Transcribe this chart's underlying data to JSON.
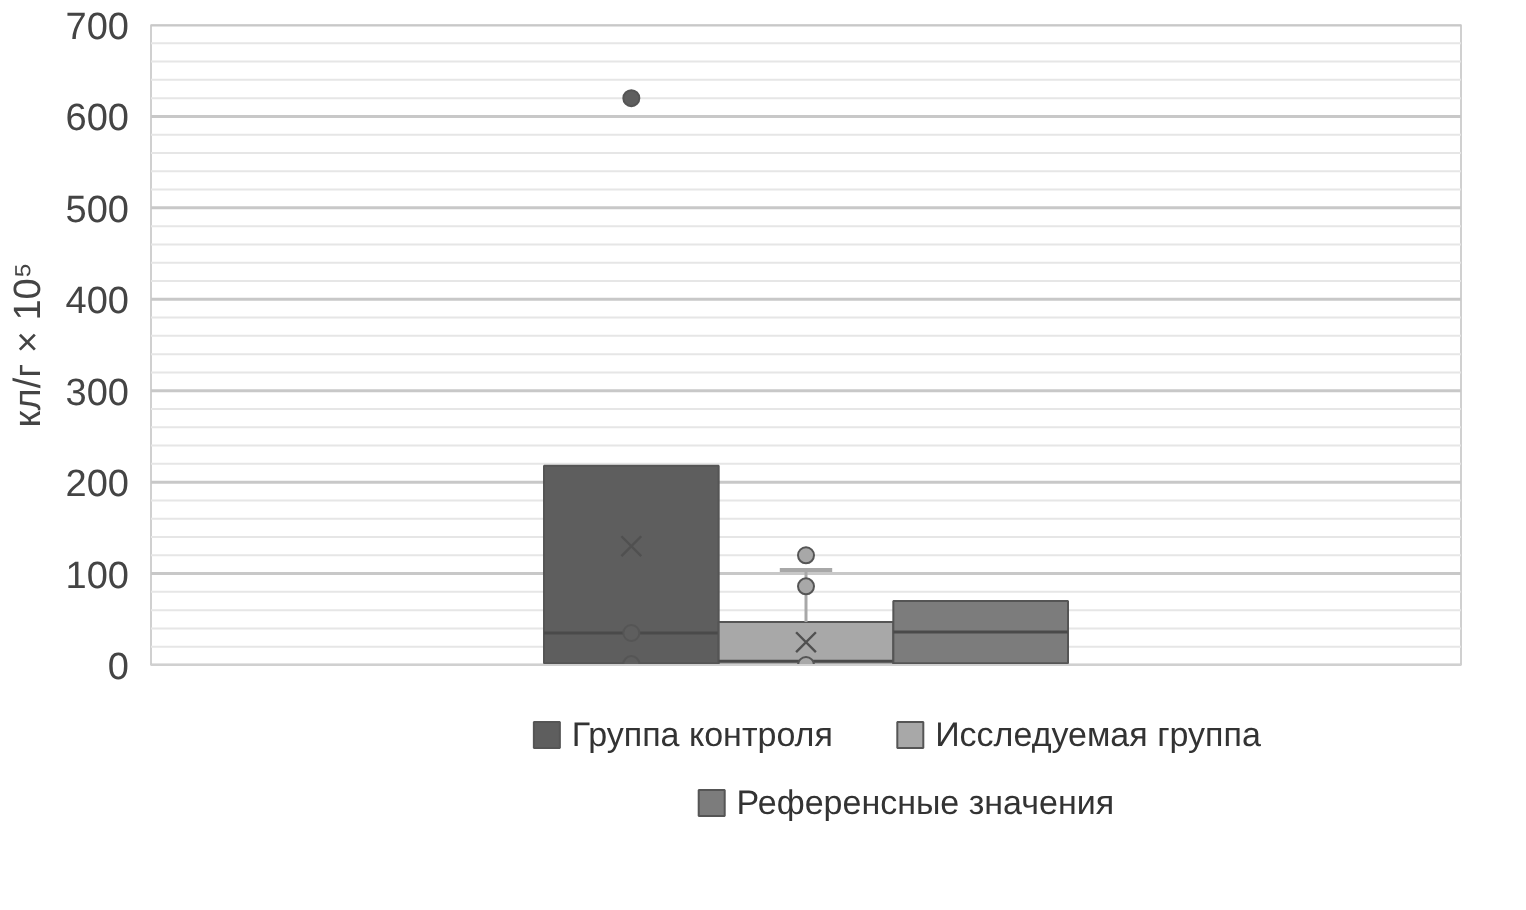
{
  "chart_data": {
    "type": "box",
    "ylabel": "кл/г × 10⁵",
    "categories": [
      null
    ],
    "series": [
      {
        "name": "Группа контроля",
        "color": "#5e5e5e",
        "boxes": [
          {
            "low": 2,
            "q1": 2,
            "median": 35,
            "q3": 218,
            "high": 218,
            "mean": 130,
            "outliers": [
              620,
              35,
              1
            ]
          }
        ]
      },
      {
        "name": "Исследуемая группа",
        "color": "#a8a8a8",
        "boxes": [
          {
            "low": 0,
            "q1": 0,
            "median": 4,
            "q3": 47,
            "high": 104,
            "mean": 25,
            "outliers": [
              120,
              86,
              0
            ]
          }
        ]
      },
      {
        "name": "Референсные значения",
        "color": "#7c7c7c",
        "boxes": [
          {
            "low": 2,
            "q1": 2,
            "median": 36,
            "q3": 70,
            "high": 70
          }
        ]
      }
    ],
    "ylim": [
      0,
      700
    ],
    "yticks": [
      0,
      {
        "value": 20,
        "label": null
      },
      {
        "value": 40,
        "label": null
      },
      {
        "value": 60,
        "label": null
      },
      {
        "value": 80,
        "label": null
      },
      100,
      {
        "value": 120,
        "label": null
      },
      {
        "value": 140,
        "label": null
      },
      {
        "value": 160,
        "label": null
      },
      {
        "value": 180,
        "label": null
      },
      200,
      {
        "value": 220,
        "label": null
      },
      {
        "value": 240,
        "label": null
      },
      {
        "value": 260,
        "label": null
      },
      {
        "value": 280,
        "label": null
      },
      300,
      {
        "value": 320,
        "label": null
      },
      {
        "value": 340,
        "label": null
      },
      {
        "value": 360,
        "label": null
      },
      {
        "value": 380,
        "label": null
      },
      400,
      {
        "value": 420,
        "label": null
      },
      {
        "value": 440,
        "label": null
      },
      {
        "value": 460,
        "label": null
      },
      {
        "value": 480,
        "label": null
      },
      500,
      {
        "value": 520,
        "label": null
      },
      {
        "value": 540,
        "label": null
      },
      {
        "value": 560,
        "label": null
      },
      {
        "value": 580,
        "label": null
      },
      600,
      {
        "value": 620,
        "label": null
      },
      {
        "value": 640,
        "label": null
      },
      {
        "value": 660,
        "label": null
      },
      {
        "value": 680,
        "label": null
      },
      700
    ],
    "grid": "y",
    "legend": "bottom",
    "marker": "circle"
  }
}
